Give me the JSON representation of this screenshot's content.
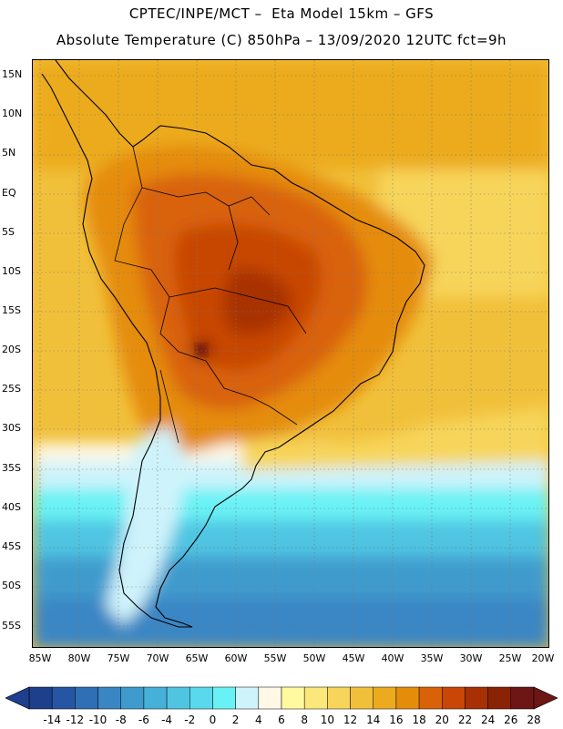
{
  "header": {
    "line1": "CPTEC/INPE/MCT –  Eta Model 15km – GFS",
    "line2": "Absolute Temperature (C) 850hPa – 13/09/2020 12UTC fct=9h"
  },
  "map": {
    "y_ticks": [
      "15N",
      "10N",
      "5N",
      "EQ",
      "5S",
      "10S",
      "15S",
      "20S",
      "25S",
      "30S",
      "35S",
      "40S",
      "45S",
      "50S",
      "55S"
    ],
    "x_ticks": [
      "85W",
      "80W",
      "75W",
      "70W",
      "65W",
      "60W",
      "55W",
      "50W",
      "45W",
      "40W",
      "35W",
      "30W",
      "25W",
      "20W"
    ]
  },
  "colorbar": {
    "labels": [
      "-14",
      "-12",
      "-10",
      "-8",
      "-6",
      "-4",
      "-2",
      "0",
      "2",
      "4",
      "6",
      "8",
      "10",
      "12",
      "14",
      "16",
      "18",
      "20",
      "22",
      "24",
      "26",
      "28"
    ],
    "colors": [
      "#1d3f8c",
      "#2656a3",
      "#2f6fb5",
      "#3a86c4",
      "#3f9bcd",
      "#45b0d8",
      "#4fc5e2",
      "#5bd9ec",
      "#69f2f5",
      "#cff3fb",
      "#fff8e6",
      "#fff9a0",
      "#fbe77a",
      "#f7d55a",
      "#f1c03b",
      "#ecab1e",
      "#e58c0a",
      "#d96208",
      "#c84706",
      "#a83005",
      "#8a2204",
      "#6e1515"
    ]
  }
}
